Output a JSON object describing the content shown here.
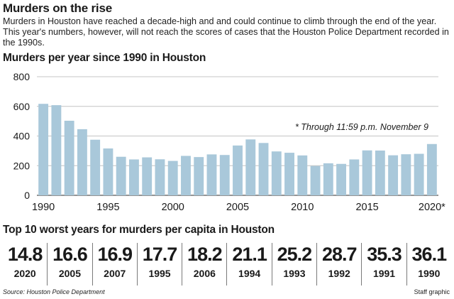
{
  "header": {
    "title": "Murders on the rise",
    "intro": "Murders in Houston have reached a decade-high and and could continue to climb through the end of the year. This year's numbers, however, will not reach the scores of cases that the Houston Police Department recorded in the 1990s."
  },
  "chart_data": {
    "type": "bar",
    "title": "Murders per year since 1990 in Houston",
    "categories": [
      "1990",
      "1991",
      "1992",
      "1993",
      "1994",
      "1995",
      "1996",
      "1997",
      "1998",
      "1999",
      "2000",
      "2001",
      "2002",
      "2003",
      "2004",
      "2005",
      "2006",
      "2007",
      "2008",
      "2009",
      "2010",
      "2011",
      "2012",
      "2013",
      "2014",
      "2015",
      "2016",
      "2017",
      "2018",
      "2019",
      "2020"
    ],
    "values": [
      617,
      608,
      503,
      446,
      375,
      316,
      260,
      242,
      256,
      243,
      232,
      266,
      258,
      276,
      272,
      336,
      377,
      353,
      296,
      287,
      269,
      198,
      216,
      212,
      242,
      303,
      302,
      270,
      277,
      280,
      346
    ],
    "x_tick_labels": [
      {
        "category": "1990",
        "label": "1990"
      },
      {
        "category": "1995",
        "label": "1995"
      },
      {
        "category": "2000",
        "label": "2000"
      },
      {
        "category": "2005",
        "label": "2005"
      },
      {
        "category": "2010",
        "label": "2010"
      },
      {
        "category": "2015",
        "label": "2015"
      },
      {
        "category": "2020",
        "label": "2020*"
      }
    ],
    "y_ticks": [
      0,
      200,
      400,
      600,
      800
    ],
    "ylim": [
      0,
      800
    ],
    "annotation": "* Through 11:59 p.m.  November 9",
    "grid": true,
    "bar_color": "#a9c8da",
    "grid_color": "#c4c4c4"
  },
  "worst_title": "Top 10 worst years for murders per capita in Houston",
  "worst_years": [
    {
      "value": "14.8",
      "year": "2020"
    },
    {
      "value": "16.6",
      "year": "2005"
    },
    {
      "value": "16.9",
      "year": "2007"
    },
    {
      "value": "17.7",
      "year": "1995"
    },
    {
      "value": "18.2",
      "year": "2006"
    },
    {
      "value": "21.1",
      "year": "1994"
    },
    {
      "value": "25.2",
      "year": "1993"
    },
    {
      "value": "28.7",
      "year": "1992"
    },
    {
      "value": "35.3",
      "year": "1991"
    },
    {
      "value": "36.1",
      "year": "1990"
    }
  ],
  "footer": {
    "source": "Source: Houston Police Department",
    "credit": "Staff graphic"
  }
}
